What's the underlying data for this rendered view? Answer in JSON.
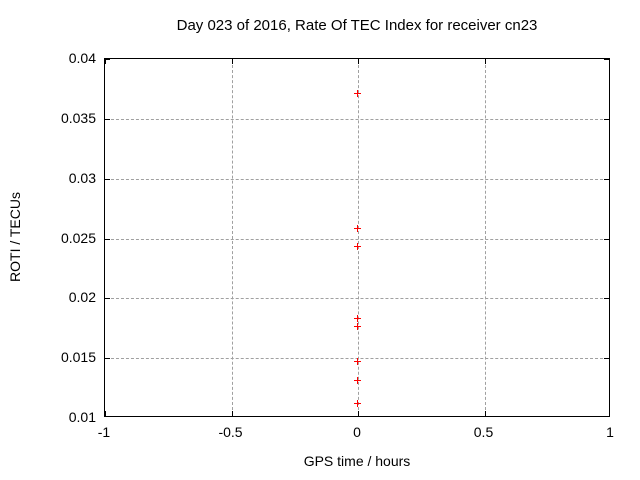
{
  "page": {
    "background_color": "#ffffff",
    "text_color": "#000000"
  },
  "chart_data": {
    "type": "scatter",
    "title": "Day 023 of 2016, Rate Of TEC Index for receiver cn23",
    "xlabel": "GPS time / hours",
    "ylabel": "ROTI / TECUs",
    "xlim": [
      -1,
      1
    ],
    "ylim": [
      0.01,
      0.04
    ],
    "xticks": [
      -1,
      -0.5,
      0,
      0.5,
      1
    ],
    "xtick_labels": [
      "-1",
      "-0.5",
      "0",
      "0.5",
      "1"
    ],
    "yticks": [
      0.01,
      0.015,
      0.02,
      0.025,
      0.03,
      0.035,
      0.04
    ],
    "ytick_labels": [
      "0.01",
      "0.015",
      "0.02",
      "0.025",
      "0.03",
      "0.035",
      "0.04"
    ],
    "grid": true,
    "legend": "none",
    "marker_style": "plus",
    "marker_color": "#ff0000",
    "grid_color": "#a0a0a0",
    "border_color": "#000000",
    "series": [
      {
        "name": "ROTI",
        "points": [
          [
            0,
            0.0371
          ],
          [
            0,
            0.0258
          ],
          [
            0,
            0.0243
          ],
          [
            0,
            0.0183
          ],
          [
            0,
            0.0176
          ],
          [
            0,
            0.0147
          ],
          [
            0,
            0.0131
          ],
          [
            0,
            0.0112
          ]
        ]
      }
    ]
  }
}
